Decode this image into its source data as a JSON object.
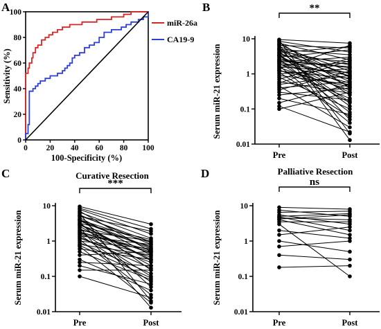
{
  "panels": {
    "A": {
      "letter": "A",
      "xlabel": "100-Specificity (%)",
      "ylabel": "Sensitivity (%)",
      "xticks": [
        "0",
        "20",
        "40",
        "60",
        "80",
        "100"
      ],
      "yticks": [
        "0",
        "20",
        "40",
        "60",
        "80",
        "100"
      ],
      "legend": [
        "miR-26a",
        "CA19-9"
      ]
    },
    "B": {
      "letter": "B",
      "ylabel": "Serum miR-21 expression",
      "yticks": [
        "10",
        "1",
        "0.1",
        "0.01"
      ],
      "xticks": [
        "Pre",
        "Post"
      ],
      "significance": "**"
    },
    "C": {
      "letter": "C",
      "title": "Curative Resection",
      "ylabel": "Serum miR-21 expression",
      "yticks": [
        "10",
        "1",
        "0.1",
        "0.01"
      ],
      "xticks": [
        "Pre",
        "Post"
      ],
      "significance": "***"
    },
    "D": {
      "letter": "D",
      "title": "Palliative Resection",
      "ylabel": "Serum miR-21 expression",
      "yticks": [
        "10",
        "1",
        "0.1",
        "0.01"
      ],
      "xticks": [
        "Pre",
        "Post"
      ],
      "significance": "ns"
    }
  },
  "chart_data": [
    {
      "panel": "A",
      "type": "line",
      "xlabel": "100-Specificity (%)",
      "ylabel": "Sensitivity (%)",
      "xlim": [
        0,
        100
      ],
      "ylim": [
        0,
        100
      ],
      "series": [
        {
          "name": "miR-26a",
          "color": "#d62728",
          "points": [
            [
              0,
              0
            ],
            [
              0,
              52
            ],
            [
              2,
              52
            ],
            [
              2,
              56
            ],
            [
              3,
              56
            ],
            [
              3,
              60
            ],
            [
              5,
              60
            ],
            [
              5,
              64
            ],
            [
              6,
              64
            ],
            [
              6,
              68
            ],
            [
              8,
              68
            ],
            [
              8,
              72
            ],
            [
              10,
              72
            ],
            [
              10,
              74
            ],
            [
              13,
              74
            ],
            [
              13,
              78
            ],
            [
              16,
              78
            ],
            [
              16,
              80
            ],
            [
              19,
              80
            ],
            [
              19,
              82
            ],
            [
              22,
              82
            ],
            [
              22,
              84
            ],
            [
              26,
              84
            ],
            [
              26,
              86
            ],
            [
              30,
              86
            ],
            [
              30,
              88
            ],
            [
              36,
              88
            ],
            [
              36,
              90
            ],
            [
              46,
              90
            ],
            [
              46,
              92
            ],
            [
              58,
              92
            ],
            [
              58,
              94
            ],
            [
              70,
              94
            ],
            [
              70,
              96
            ],
            [
              80,
              96
            ],
            [
              80,
              98
            ],
            [
              86,
              98
            ],
            [
              86,
              100
            ],
            [
              100,
              100
            ]
          ]
        },
        {
          "name": "CA19-9",
          "color": "#2e3fd6",
          "points": [
            [
              0,
              0
            ],
            [
              0,
              5
            ],
            [
              2,
              5
            ],
            [
              2,
              12
            ],
            [
              3,
              12
            ],
            [
              3,
              38
            ],
            [
              6,
              38
            ],
            [
              6,
              40
            ],
            [
              8,
              40
            ],
            [
              8,
              42
            ],
            [
              10,
              42
            ],
            [
              10,
              44
            ],
            [
              12,
              44
            ],
            [
              12,
              46
            ],
            [
              16,
              46
            ],
            [
              16,
              48
            ],
            [
              20,
              48
            ],
            [
              20,
              50
            ],
            [
              26,
              50
            ],
            [
              26,
              52
            ],
            [
              30,
              52
            ],
            [
              30,
              54
            ],
            [
              32,
              54
            ],
            [
              32,
              56
            ],
            [
              34,
              56
            ],
            [
              34,
              58
            ],
            [
              36,
              58
            ],
            [
              36,
              60
            ],
            [
              38,
              60
            ],
            [
              38,
              64
            ],
            [
              40,
              64
            ],
            [
              40,
              66
            ],
            [
              44,
              66
            ],
            [
              44,
              68
            ],
            [
              48,
              68
            ],
            [
              48,
              72
            ],
            [
              52,
              72
            ],
            [
              52,
              74
            ],
            [
              56,
              74
            ],
            [
              56,
              76
            ],
            [
              60,
              76
            ],
            [
              60,
              80
            ],
            [
              64,
              80
            ],
            [
              64,
              84
            ],
            [
              70,
              84
            ],
            [
              70,
              86
            ],
            [
              78,
              86
            ],
            [
              78,
              88
            ],
            [
              82,
              88
            ],
            [
              82,
              90
            ],
            [
              86,
              90
            ],
            [
              86,
              92
            ],
            [
              92,
              92
            ],
            [
              92,
              94
            ],
            [
              96,
              94
            ],
            [
              96,
              96
            ],
            [
              100,
              96
            ],
            [
              100,
              100
            ]
          ]
        },
        {
          "name": "reference",
          "color": "#000000",
          "points": [
            [
              0,
              0
            ],
            [
              100,
              100
            ]
          ]
        }
      ]
    },
    {
      "panel": "B",
      "type": "scatter",
      "title": "",
      "categories": [
        "Pre",
        "Post"
      ],
      "ylabel": "Serum miR-21 expression",
      "yscale": "log",
      "ylim": [
        0.01,
        10
      ],
      "pairs": [
        [
          9.5,
          7.5
        ],
        [
          9,
          0.02
        ],
        [
          8.5,
          4.2
        ],
        [
          8,
          0.4
        ],
        [
          7.5,
          2.5
        ],
        [
          7,
          0.8
        ],
        [
          6.5,
          5.5
        ],
        [
          6,
          1.2
        ],
        [
          5.5,
          0.05
        ],
        [
          5,
          3.5
        ],
        [
          4.8,
          0.6
        ],
        [
          4.5,
          1.8
        ],
        [
          4.2,
          0.25
        ],
        [
          4,
          6
        ],
        [
          3.8,
          1
        ],
        [
          3.6,
          0.12
        ],
        [
          3.4,
          2.2
        ],
        [
          3.2,
          0.45
        ],
        [
          3,
          4.8
        ],
        [
          2.8,
          0.7
        ],
        [
          2.6,
          0.08
        ],
        [
          2.5,
          1.5
        ],
        [
          2.4,
          0.3
        ],
        [
          2.2,
          3
        ],
        [
          2.1,
          0.9
        ],
        [
          2,
          0.15
        ],
        [
          1.9,
          0.55
        ],
        [
          1.8,
          2
        ],
        [
          1.7,
          0.04
        ],
        [
          1.6,
          1.1
        ],
        [
          1.5,
          0.35
        ],
        [
          1.4,
          6.5
        ],
        [
          1.3,
          0.2
        ],
        [
          1.2,
          0.75
        ],
        [
          1.1,
          0.06
        ],
        [
          1,
          1.4
        ],
        [
          0.9,
          0.5
        ],
        [
          0.8,
          0.1
        ],
        [
          0.7,
          2.8
        ],
        [
          0.6,
          0.28
        ],
        [
          0.5,
          0.9
        ],
        [
          0.45,
          0.03
        ],
        [
          0.4,
          0.6
        ],
        [
          0.35,
          1.2
        ],
        [
          0.3,
          0.18
        ],
        [
          0.25,
          0.4
        ],
        [
          0.2,
          0.07
        ],
        [
          0.15,
          0.5
        ],
        [
          0.12,
          0.022
        ],
        [
          0.1,
          0.3
        ],
        [
          6.8,
          0.013
        ],
        [
          5.2,
          0.85
        ],
        [
          3.3,
          0.16
        ],
        [
          2.3,
          1.6
        ],
        [
          1.25,
          0.42
        ],
        [
          0.55,
          2.4
        ]
      ]
    },
    {
      "panel": "C",
      "type": "scatter",
      "title": "Curative Resection",
      "categories": [
        "Pre",
        "Post"
      ],
      "ylabel": "Serum miR-21 expression",
      "yscale": "log",
      "ylim": [
        0.01,
        10
      ],
      "pairs": [
        [
          9.5,
          3
        ],
        [
          8.5,
          2.2
        ],
        [
          7.8,
          1.6
        ],
        [
          7,
          0.5
        ],
        [
          6.5,
          1.2
        ],
        [
          6,
          0.02
        ],
        [
          5.5,
          0.8
        ],
        [
          5,
          1.9
        ],
        [
          4.6,
          0.4
        ],
        [
          4.2,
          0.15
        ],
        [
          4,
          0.9
        ],
        [
          3.7,
          0.6
        ],
        [
          3.4,
          0.05
        ],
        [
          3.2,
          1.1
        ],
        [
          3,
          0.3
        ],
        [
          2.8,
          0.7
        ],
        [
          2.6,
          0.2
        ],
        [
          2.4,
          0.013
        ],
        [
          2.2,
          0.45
        ],
        [
          2,
          1
        ],
        [
          1.9,
          0.1
        ],
        [
          1.8,
          0.55
        ],
        [
          1.6,
          0.35
        ],
        [
          1.5,
          0.07
        ],
        [
          1.4,
          0.8
        ],
        [
          1.2,
          0.25
        ],
        [
          1.1,
          0.03
        ],
        [
          1,
          0.6
        ],
        [
          0.9,
          0.12
        ],
        [
          0.8,
          0.4
        ],
        [
          0.7,
          0.018
        ],
        [
          0.6,
          0.3
        ],
        [
          0.5,
          0.08
        ],
        [
          0.4,
          0.5
        ],
        [
          0.3,
          0.04
        ],
        [
          0.25,
          0.2
        ],
        [
          0.2,
          0.06
        ],
        [
          0.15,
          0.15
        ],
        [
          0.1,
          0.025
        ],
        [
          5.2,
          0.95
        ],
        [
          3.9,
          0.65
        ],
        [
          2.9,
          0.28
        ],
        [
          1.7,
          0.5
        ],
        [
          1.3,
          0.17
        ],
        [
          0.75,
          0.09
        ]
      ]
    },
    {
      "panel": "D",
      "type": "scatter",
      "title": "Palliative Resection",
      "categories": [
        "Pre",
        "Post"
      ],
      "ylabel": "Serum miR-21 expression",
      "yscale": "log",
      "ylim": [
        0.01,
        10
      ],
      "pairs": [
        [
          9,
          8
        ],
        [
          7.5,
          5
        ],
        [
          6.5,
          7
        ],
        [
          5.5,
          3
        ],
        [
          5,
          6
        ],
        [
          4.8,
          2
        ],
        [
          4.5,
          4
        ],
        [
          4.2,
          5.5
        ],
        [
          4,
          1.5
        ],
        [
          3.5,
          3.5
        ],
        [
          3,
          0.1
        ],
        [
          2,
          1.2
        ],
        [
          1.5,
          2.5
        ],
        [
          1,
          0.5
        ],
        [
          0.7,
          1
        ],
        [
          0.4,
          0.3
        ],
        [
          0.18,
          0.2
        ]
      ]
    }
  ]
}
